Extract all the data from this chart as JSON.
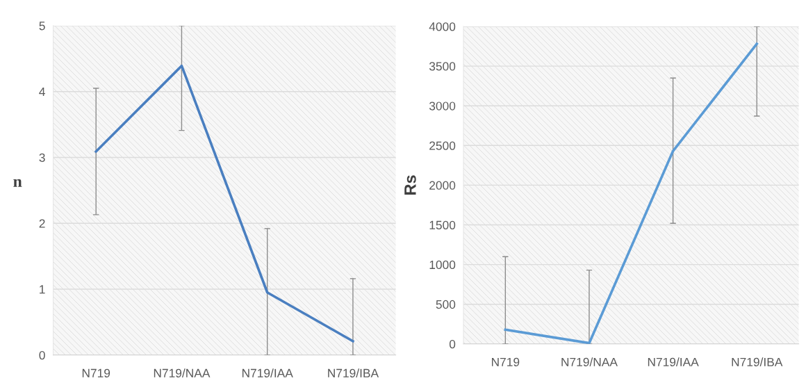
{
  "chart_data": [
    {
      "type": "line",
      "ylabel": "n",
      "categories": [
        "N719",
        "N719/NAA",
        "N719/IAA",
        "N719/IBA"
      ],
      "series": [
        {
          "color": "#4a7fc0",
          "values": [
            3.09,
            4.39,
            0.95,
            0.21
          ],
          "errors": [
            0.96,
            [
              3.41,
              5
            ],
            [
              0,
              1.92
            ],
            [
              0,
              1.16
            ]
          ]
        }
      ],
      "ylim": [
        0,
        5
      ],
      "yticks": [
        0,
        1,
        2,
        3,
        4,
        5
      ],
      "grid": "y"
    },
    {
      "type": "line",
      "ylabel": "Rs",
      "categories": [
        "N719",
        "N719/NAA",
        "N719/IAA",
        "N719/IBA"
      ],
      "series": [
        {
          "color": "#5b9bd5",
          "values": [
            180,
            10,
            2430,
            3780
          ],
          "errors": [
            [
              0,
              1100
            ],
            [
              0,
              930
            ],
            [
              1520,
              3350
            ],
            [
              2870,
              4000
            ]
          ]
        }
      ],
      "ylim": [
        0,
        4000
      ],
      "yticks": [
        0,
        500,
        1000,
        1500,
        2000,
        2500,
        3000,
        3500,
        4000
      ],
      "grid": "y"
    }
  ]
}
